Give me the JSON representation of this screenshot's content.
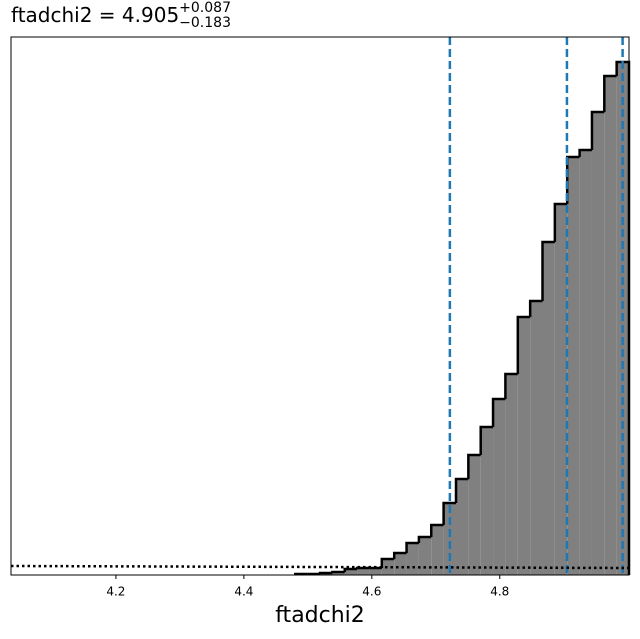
{
  "chart_data": {
    "type": "histogram",
    "title": "ftadchi2 = 4.905",
    "title_sup": "+0.087",
    "title_sub": "−0.183",
    "xlabel": "ftadchi2",
    "bins": [
      4.4804,
      4.4997,
      4.519,
      4.5384,
      4.5577,
      4.577,
      4.5963,
      4.6156,
      4.635,
      4.6543,
      4.6736,
      4.6929,
      4.7122,
      4.7316,
      4.7509,
      4.7702,
      4.7895,
      4.8088,
      4.8282,
      4.8475,
      4.8668,
      4.8861,
      4.9054,
      4.9248,
      4.9441,
      4.9634,
      4.9827,
      5.002
    ],
    "values": [
      1,
      1,
      2,
      3,
      6,
      7,
      7,
      16,
      22,
      32,
      38,
      50,
      72,
      96,
      120,
      148,
      176,
      201,
      258,
      274,
      333,
      371,
      418,
      425,
      463,
      499,
      513
    ],
    "color": "#808080",
    "xlim": [
      4.036,
      5.002
    ],
    "ylim": [
      0,
      538
    ],
    "xticks": [
      4.2,
      4.4,
      4.6,
      4.8
    ],
    "quantiles": [
      4.722,
      4.905,
      4.992
    ],
    "quantile_color": "#1f77b4",
    "prior_x": [
      4.036,
      5.002
    ],
    "prior_y": [
      9,
      7
    ]
  }
}
